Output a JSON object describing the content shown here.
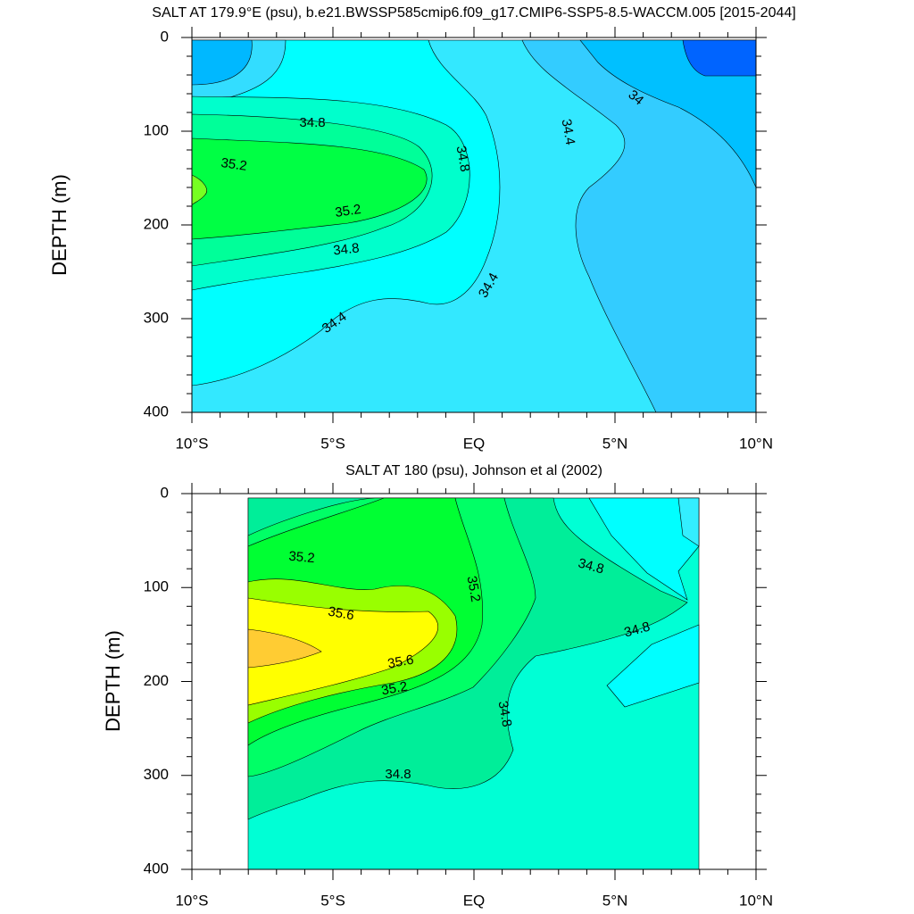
{
  "chart_data": [
    {
      "type": "contour",
      "title": "SALT AT 179.9°E (psu), b.e21.BWSSP585cmip6.f09_g17.CMIP6-SSP5-8.5-WACCM.005 [2015-2044]",
      "ylabel": "DEPTH (m)",
      "xlim": [
        -10,
        10
      ],
      "xticks": [
        {
          "value": -10,
          "label": "10°S"
        },
        {
          "value": -5,
          "label": "5°S"
        },
        {
          "value": 0,
          "label": "EQ"
        },
        {
          "value": 5,
          "label": "5°N"
        },
        {
          "value": 10,
          "label": "10°N"
        }
      ],
      "ylim": [
        0,
        400
      ],
      "y_reversed": true,
      "yticks": [
        0,
        100,
        200,
        300,
        400
      ],
      "contour_labels": [
        "34.8",
        "35.2",
        "35.2",
        "34.8",
        "34.4",
        "34.8",
        "34.4",
        "34.4",
        "34"
      ]
    },
    {
      "type": "contour",
      "title": "SALT AT 180 (psu), Johnson et al (2002)",
      "ylabel": "DEPTH (m)",
      "xlim": [
        -10,
        10
      ],
      "xticks": [
        {
          "value": -10,
          "label": "10°S"
        },
        {
          "value": -5,
          "label": "5°S"
        },
        {
          "value": 0,
          "label": "EQ"
        },
        {
          "value": 5,
          "label": "5°N"
        },
        {
          "value": 10,
          "label": "10°N"
        }
      ],
      "ylim": [
        0,
        400
      ],
      "y_reversed": true,
      "yticks": [
        0,
        100,
        200,
        300,
        400
      ],
      "contour_labels": [
        "35.2",
        "35.2",
        "34.8",
        "35.6",
        "35.6",
        "35.2",
        "34.8",
        "34.8",
        "34.8"
      ]
    }
  ]
}
